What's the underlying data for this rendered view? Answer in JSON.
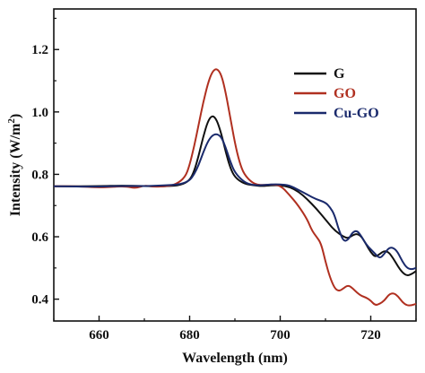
{
  "chart_data": {
    "type": "line",
    "xlabel": "Wavelength (nm)",
    "ylabel": "Intensity (W/m²)",
    "ylabel_parts": {
      "main": "Intensity (W/m",
      "sup": "2",
      "close": ")"
    },
    "xlim": [
      650,
      730
    ],
    "ylim": [
      0.33,
      1.33
    ],
    "x_ticks": [
      660,
      680,
      700,
      720
    ],
    "y_ticks": [
      0.4,
      0.6,
      0.8,
      1.0,
      1.2
    ],
    "x_tick_labels": [
      "660",
      "680",
      "700",
      "720"
    ],
    "y_tick_labels": [
      "0.4",
      "0.6",
      "0.8",
      "1.0",
      "1.2"
    ],
    "legend_position": "top-right",
    "series": [
      {
        "name": "G",
        "color": "#111111",
        "points": [
          [
            650,
            0.762
          ],
          [
            660,
            0.762
          ],
          [
            665,
            0.764
          ],
          [
            670,
            0.762
          ],
          [
            675,
            0.762
          ],
          [
            678,
            0.765
          ],
          [
            680,
            0.78
          ],
          [
            681,
            0.81
          ],
          [
            682,
            0.86
          ],
          [
            683,
            0.92
          ],
          [
            684,
            0.97
          ],
          [
            685,
            0.99
          ],
          [
            686,
            0.975
          ],
          [
            687,
            0.93
          ],
          [
            688,
            0.87
          ],
          [
            689,
            0.82
          ],
          [
            690,
            0.79
          ],
          [
            692,
            0.77
          ],
          [
            694,
            0.765
          ],
          [
            696,
            0.762
          ],
          [
            698,
            0.765
          ],
          [
            700,
            0.765
          ],
          [
            702,
            0.76
          ],
          [
            704,
            0.745
          ],
          [
            706,
            0.72
          ],
          [
            708,
            0.69
          ],
          [
            710,
            0.655
          ],
          [
            712,
            0.62
          ],
          [
            714,
            0.6
          ],
          [
            715,
            0.595
          ],
          [
            716,
            0.605
          ],
          [
            717,
            0.61
          ],
          [
            718,
            0.6
          ],
          [
            719,
            0.575
          ],
          [
            720,
            0.55
          ],
          [
            721,
            0.535
          ],
          [
            722,
            0.545
          ],
          [
            723,
            0.555
          ],
          [
            724,
            0.55
          ],
          [
            725,
            0.53
          ],
          [
            726,
            0.505
          ],
          [
            727,
            0.485
          ],
          [
            728,
            0.475
          ],
          [
            729,
            0.48
          ],
          [
            730,
            0.49
          ]
        ]
      },
      {
        "name": "GO",
        "color": "#b03020",
        "points": [
          [
            650,
            0.762
          ],
          [
            655,
            0.762
          ],
          [
            660,
            0.758
          ],
          [
            663,
            0.76
          ],
          [
            666,
            0.762
          ],
          [
            668,
            0.755
          ],
          [
            670,
            0.765
          ],
          [
            672,
            0.76
          ],
          [
            675,
            0.762
          ],
          [
            677,
            0.768
          ],
          [
            679,
            0.79
          ],
          [
            680,
            0.83
          ],
          [
            681,
            0.89
          ],
          [
            682,
            0.96
          ],
          [
            683,
            1.03
          ],
          [
            684,
            1.09
          ],
          [
            685,
            1.13
          ],
          [
            686,
            1.14
          ],
          [
            687,
            1.12
          ],
          [
            688,
            1.06
          ],
          [
            689,
            0.98
          ],
          [
            690,
            0.9
          ],
          [
            691,
            0.84
          ],
          [
            692,
            0.8
          ],
          [
            694,
            0.77
          ],
          [
            696,
            0.765
          ],
          [
            698,
            0.768
          ],
          [
            700,
            0.765
          ],
          [
            702,
            0.735
          ],
          [
            704,
            0.7
          ],
          [
            706,
            0.655
          ],
          [
            707,
            0.62
          ],
          [
            708,
            0.6
          ],
          [
            709,
            0.58
          ],
          [
            710,
            0.52
          ],
          [
            711,
            0.47
          ],
          [
            712,
            0.435
          ],
          [
            713,
            0.425
          ],
          [
            714,
            0.435
          ],
          [
            715,
            0.445
          ],
          [
            716,
            0.435
          ],
          [
            717,
            0.42
          ],
          [
            718,
            0.41
          ],
          [
            719,
            0.405
          ],
          [
            720,
            0.395
          ],
          [
            721,
            0.38
          ],
          [
            722,
            0.385
          ],
          [
            723,
            0.395
          ],
          [
            724,
            0.415
          ],
          [
            725,
            0.42
          ],
          [
            726,
            0.41
          ],
          [
            727,
            0.39
          ],
          [
            728,
            0.38
          ],
          [
            729,
            0.38
          ],
          [
            730,
            0.385
          ]
        ]
      },
      {
        "name": "Cu-GO",
        "color": "#1a2a6c",
        "points": [
          [
            650,
            0.762
          ],
          [
            660,
            0.76
          ],
          [
            665,
            0.763
          ],
          [
            670,
            0.762
          ],
          [
            675,
            0.765
          ],
          [
            678,
            0.768
          ],
          [
            680,
            0.78
          ],
          [
            681,
            0.8
          ],
          [
            682,
            0.83
          ],
          [
            683,
            0.87
          ],
          [
            684,
            0.905
          ],
          [
            685,
            0.925
          ],
          [
            686,
            0.93
          ],
          [
            687,
            0.92
          ],
          [
            688,
            0.885
          ],
          [
            689,
            0.84
          ],
          [
            690,
            0.805
          ],
          [
            692,
            0.775
          ],
          [
            694,
            0.765
          ],
          [
            696,
            0.765
          ],
          [
            698,
            0.768
          ],
          [
            700,
            0.768
          ],
          [
            702,
            0.765
          ],
          [
            704,
            0.75
          ],
          [
            706,
            0.735
          ],
          [
            708,
            0.72
          ],
          [
            710,
            0.71
          ],
          [
            711,
            0.695
          ],
          [
            712,
            0.67
          ],
          [
            713,
            0.62
          ],
          [
            714,
            0.585
          ],
          [
            715,
            0.59
          ],
          [
            716,
            0.615
          ],
          [
            717,
            0.62
          ],
          [
            718,
            0.6
          ],
          [
            719,
            0.575
          ],
          [
            720,
            0.56
          ],
          [
            721,
            0.545
          ],
          [
            722,
            0.53
          ],
          [
            723,
            0.545
          ],
          [
            724,
            0.565
          ],
          [
            725,
            0.565
          ],
          [
            726,
            0.55
          ],
          [
            727,
            0.52
          ],
          [
            728,
            0.5
          ],
          [
            729,
            0.495
          ],
          [
            730,
            0.5
          ]
        ]
      }
    ]
  }
}
